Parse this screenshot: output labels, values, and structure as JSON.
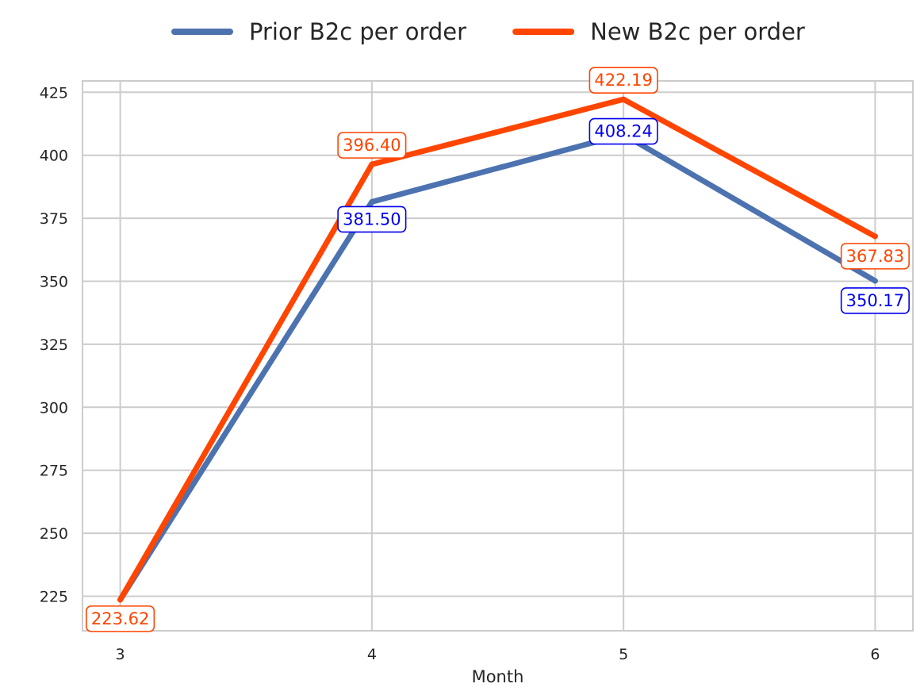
{
  "chart_data": {
    "type": "line",
    "title": "",
    "xlabel": "Month",
    "ylabel": "",
    "x": [
      3,
      4,
      5,
      6
    ],
    "xlim": [
      2.85,
      6.15
    ],
    "ylim": [
      211.3,
      429.5
    ],
    "yticks": [
      225,
      250,
      275,
      300,
      325,
      350,
      375,
      400,
      425
    ],
    "grid": true,
    "legend_position": "top-center",
    "series": [
      {
        "name": "Prior B2c per order",
        "color": "#4c72b0",
        "label_color": "#0000ee",
        "values": [
          223.62,
          381.5,
          408.24,
          350.17
        ],
        "labels": [
          "",
          "381.50",
          "408.24",
          "350.17"
        ]
      },
      {
        "name": "New B2c per order",
        "color": "#ff4500",
        "label_color": "#ff4500",
        "values": [
          223.62,
          396.4,
          422.19,
          367.83
        ],
        "labels": [
          "223.62",
          "396.40",
          "422.19",
          "367.83"
        ]
      }
    ]
  }
}
